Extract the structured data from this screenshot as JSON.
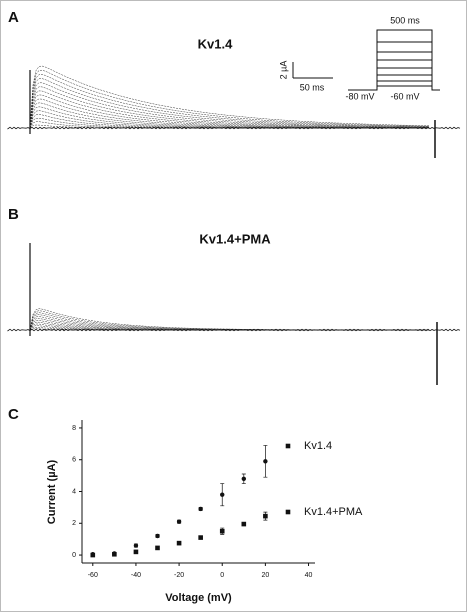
{
  "panels": {
    "a": {
      "label": "A",
      "title": "Kv1.4",
      "scale_current": "2 µA",
      "scale_time": "50 ms",
      "protocol_duration": "500 ms",
      "protocol_hold": "-80 mV",
      "protocol_start": "-60 mV"
    },
    "b": {
      "label": "B",
      "title": "Kv1.4+PMA"
    },
    "c": {
      "label": "C"
    }
  },
  "chart_data": {
    "type": "scatter",
    "xlabel": "Voltage (mV)",
    "ylabel": "Current (µA)",
    "x": [
      -60,
      -50,
      -40,
      -30,
      -20,
      -10,
      0,
      10,
      20
    ],
    "series": [
      {
        "name": "Kv1.4",
        "color": "#111111",
        "marker": "circle",
        "values": [
          0.05,
          0.1,
          0.6,
          1.2,
          2.1,
          2.9,
          3.8,
          4.8,
          5.9
        ],
        "errors": [
          0.05,
          0.05,
          0.1,
          0.1,
          0.1,
          0.1,
          0.7,
          0.3,
          1.0
        ]
      },
      {
        "name": "Kv1.4+PMA",
        "color": "#111111",
        "marker": "square",
        "values": [
          0,
          0.05,
          0.2,
          0.45,
          0.75,
          1.1,
          1.5,
          1.95,
          2.45
        ],
        "errors": [
          0.03,
          0.03,
          0.05,
          0.05,
          0.05,
          0.05,
          0.2,
          0.1,
          0.25
        ]
      }
    ],
    "xlim": [
      -65,
      43
    ],
    "ylim": [
      -0.5,
      8.5
    ],
    "xticks": [
      -60,
      -40,
      -20,
      0,
      20,
      40
    ],
    "yticks": [
      0,
      2,
      4,
      6,
      8
    ]
  }
}
